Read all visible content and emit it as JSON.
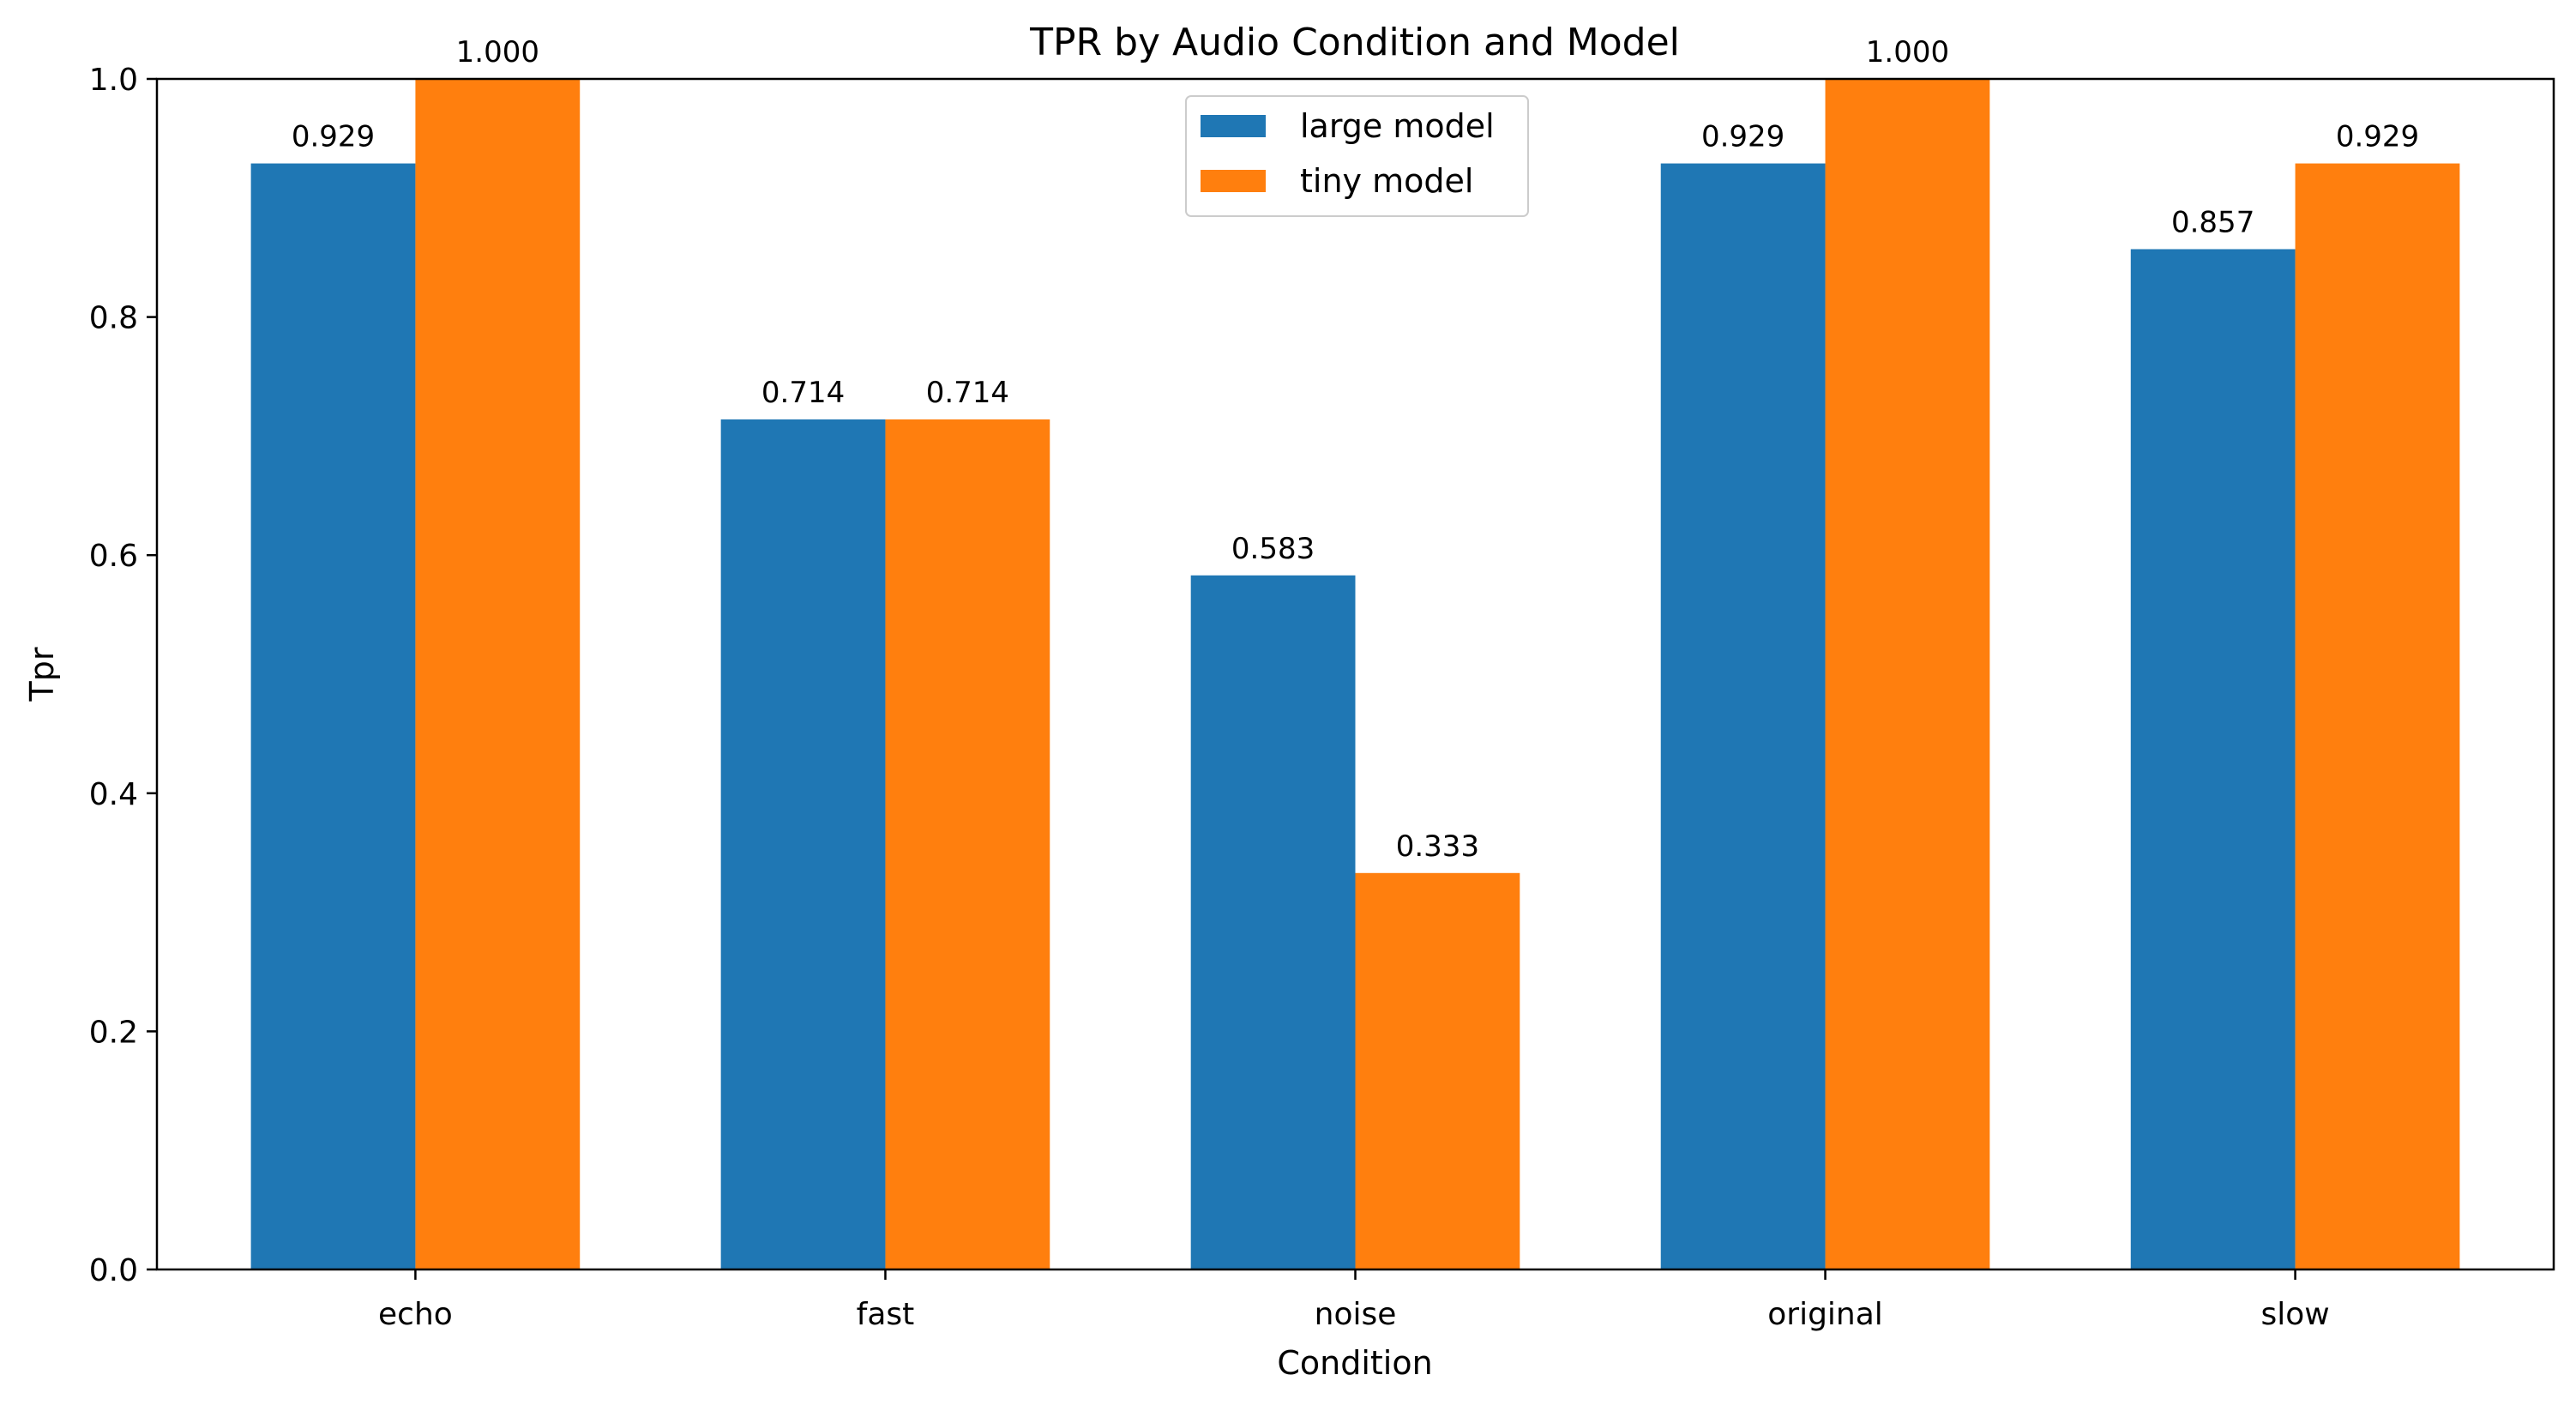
{
  "chart_data": {
    "type": "bar",
    "title": "TPR by Audio Condition and Model",
    "xlabel": "Condition",
    "ylabel": "Tpr",
    "categories": [
      "echo",
      "fast",
      "noise",
      "original",
      "slow"
    ],
    "series": [
      {
        "name": "large model",
        "color": "#1f77b4",
        "values": [
          0.929,
          0.714,
          0.583,
          0.929,
          0.857
        ],
        "labels": [
          "0.929",
          "0.714",
          "0.583",
          "0.929",
          "0.857"
        ]
      },
      {
        "name": "tiny model",
        "color": "#ff7f0e",
        "values": [
          1.0,
          0.714,
          0.333,
          1.0,
          0.929
        ],
        "labels": [
          "1.000",
          "0.714",
          "0.333",
          "1.000",
          "0.929"
        ]
      }
    ],
    "ylim": [
      0,
      1.0
    ],
    "yticks": [
      "0.0",
      "0.2",
      "0.4",
      "0.6",
      "0.8",
      "1.0"
    ],
    "grid": false,
    "legend_position": "top-center"
  }
}
